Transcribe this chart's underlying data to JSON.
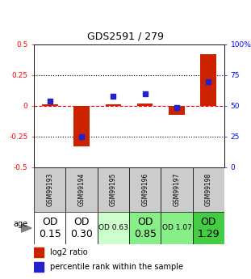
{
  "title": "GDS2591 / 279",
  "samples": [
    "GSM99193",
    "GSM99194",
    "GSM99195",
    "GSM99196",
    "GSM99197",
    "GSM99198"
  ],
  "log2_ratio": [
    0.01,
    -0.33,
    0.01,
    0.02,
    -0.07,
    0.42
  ],
  "percentile_rank": [
    54,
    25,
    58,
    60,
    49,
    70
  ],
  "age_labels": [
    "OD\n0.15",
    "OD\n0.30",
    "OD 0.63",
    "OD\n0.85",
    "OD 1.07",
    "OD\n1.29"
  ],
  "age_fontsize": [
    9,
    9,
    6.5,
    9,
    6.5,
    9
  ],
  "age_bg_colors": [
    "#ffffff",
    "#ffffff",
    "#ccffcc",
    "#88ee88",
    "#88ee88",
    "#44cc44"
  ],
  "bar_color": "#cc2200",
  "dot_color": "#2222cc",
  "ylim_left": [
    -0.5,
    0.5
  ],
  "ylim_right": [
    0,
    100
  ],
  "dotted_line_vals": [
    0.25,
    -0.25
  ],
  "bar_width": 0.5,
  "sample_bg_color": "#cccccc"
}
